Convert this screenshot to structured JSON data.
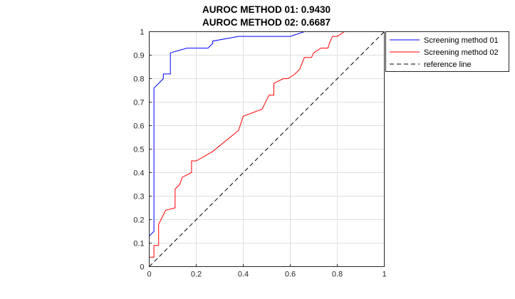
{
  "chart_data": {
    "type": "line",
    "title": [
      "AUROC METHOD 01: 0.9430",
      "AUROC METHOD 02: 0.6687"
    ],
    "xlabel": "",
    "ylabel": "",
    "xlim": [
      0,
      1
    ],
    "ylim": [
      0,
      1
    ],
    "xticks": [
      0,
      0.2,
      0.4,
      0.6,
      0.8,
      1
    ],
    "xtick_labels": [
      "0",
      "0.2",
      "0.4",
      "0.6",
      "0.8",
      "1"
    ],
    "yticks": [
      0,
      0.1,
      0.2,
      0.3,
      0.4,
      0.5,
      0.6,
      0.7,
      0.8,
      0.9,
      1
    ],
    "ytick_labels": [
      "0",
      "0.1",
      "0.2",
      "0.3",
      "0.4",
      "0.5",
      "0.6",
      "0.7",
      "0.8",
      "0.9",
      "1"
    ],
    "grid": true,
    "legend_position": "outside-top-right",
    "series": [
      {
        "name": "Screening method 01",
        "color": "#0000ff",
        "style": "solid",
        "x": [
          0,
          0,
          0.02,
          0.02,
          0.04,
          0.06,
          0.06,
          0.09,
          0.09,
          0.16,
          0.25,
          0.27,
          0.27,
          0.38,
          0.6,
          0.66,
          0.66,
          0.73,
          0.86,
          0.86,
          1
        ],
        "y": [
          0,
          0.13,
          0.15,
          0.76,
          0.78,
          0.8,
          0.82,
          0.82,
          0.91,
          0.93,
          0.93,
          0.95,
          0.96,
          0.98,
          0.98,
          1,
          1,
          1,
          1,
          1,
          1
        ]
      },
      {
        "name": "Screening method 02",
        "color": "#ff0000",
        "style": "solid",
        "x": [
          0,
          0,
          0.02,
          0.02,
          0.04,
          0.04,
          0.06,
          0.07,
          0.11,
          0.11,
          0.13,
          0.14,
          0.14,
          0.18,
          0.18,
          0.2,
          0.27,
          0.38,
          0.4,
          0.48,
          0.5,
          0.51,
          0.53,
          0.53,
          0.57,
          0.59,
          0.62,
          0.64,
          0.66,
          0.69,
          0.7,
          0.73,
          0.76,
          0.77,
          0.78,
          0.8,
          0.83,
          0.86,
          1
        ],
        "y": [
          0,
          0.04,
          0.04,
          0.09,
          0.09,
          0.18,
          0.22,
          0.24,
          0.25,
          0.33,
          0.35,
          0.38,
          0.38,
          0.4,
          0.45,
          0.45,
          0.49,
          0.58,
          0.64,
          0.67,
          0.71,
          0.73,
          0.73,
          0.78,
          0.8,
          0.8,
          0.82,
          0.84,
          0.89,
          0.89,
          0.91,
          0.93,
          0.93,
          0.96,
          0.98,
          0.98,
          1,
          1,
          1
        ]
      },
      {
        "name": "reference line",
        "color": "#000000",
        "style": "dashed",
        "x": [
          0,
          1
        ],
        "y": [
          0,
          1
        ]
      }
    ]
  }
}
